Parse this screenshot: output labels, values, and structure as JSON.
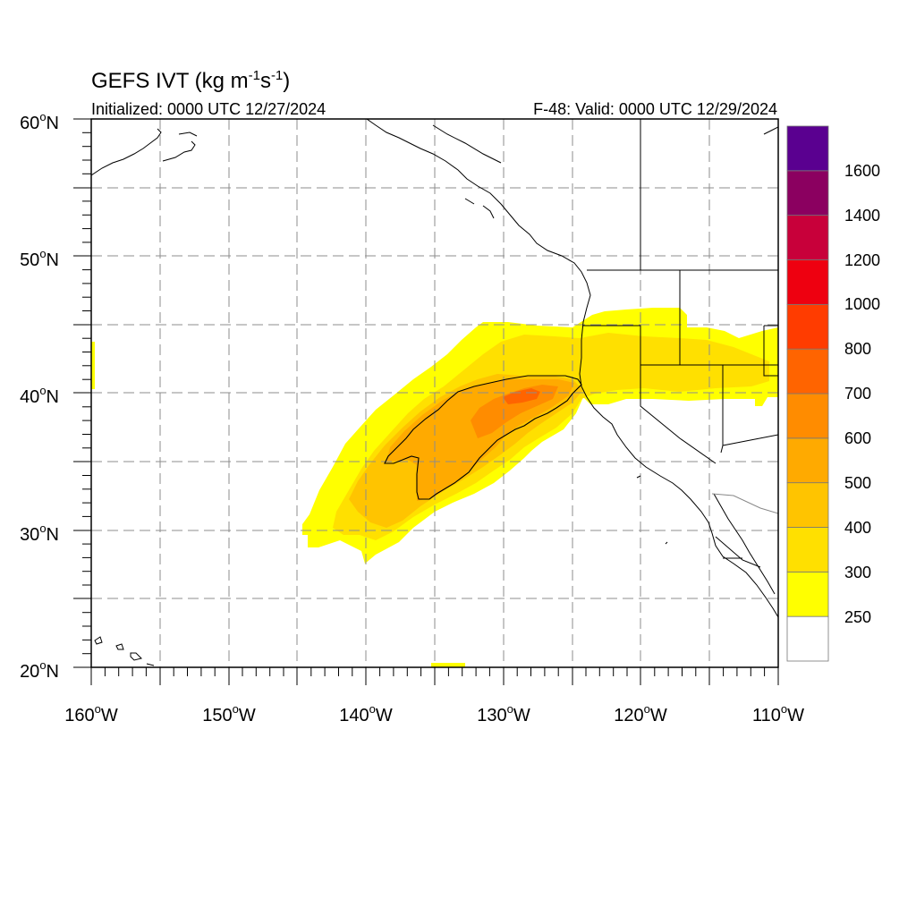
{
  "header": {
    "title_main": "GEFS IVT (kg m",
    "title_sup1": "-1",
    "title_mid": "s",
    "title_sup2": "-1",
    "title_end": ")",
    "initialized": "Initialized: 0000 UTC 12/27/2024",
    "valid": "F-48: Valid: 0000 UTC 12/29/2024"
  },
  "axes": {
    "lon_labels": [
      "160",
      "150",
      "140",
      "130",
      "120",
      "110"
    ],
    "lon_suffix": "W",
    "lat_labels": [
      "20",
      "30",
      "40",
      "50",
      "60"
    ],
    "lat_suffix": "N",
    "degree": "o",
    "lon_range": [
      -160,
      -110
    ],
    "lat_range": [
      20,
      60
    ],
    "grid": "dashed every 5 degrees"
  },
  "colorbar": {
    "labels": [
      "250",
      "300",
      "400",
      "500",
      "600",
      "700",
      "800",
      "1000",
      "1200",
      "1400",
      "1600"
    ],
    "colors": [
      "#ffffff",
      "#ffff00",
      "#ffe000",
      "#ffc400",
      "#ffaa00",
      "#ff8c00",
      "#ff6400",
      "#ff3c00",
      "#ee0010",
      "#c8003a",
      "#8b0060",
      "#5a0090"
    ]
  },
  "map_data": {
    "field": "IVT",
    "units": "kg m-1 s-1",
    "contour_level": 500,
    "features": [
      "coastlines",
      "US state borders",
      "Canada-US border"
    ]
  }
}
